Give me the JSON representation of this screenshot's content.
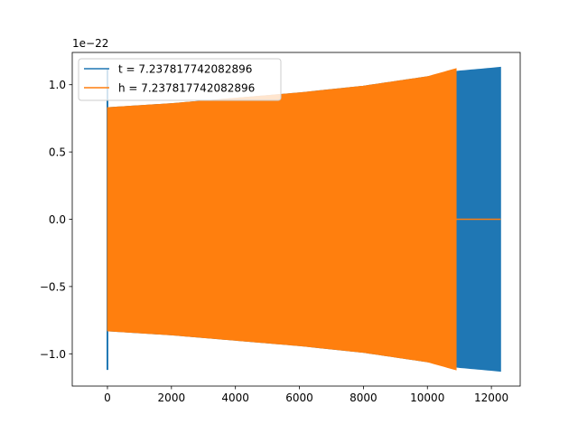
{
  "chart_data": {
    "type": "line",
    "title": "",
    "xlabel": "",
    "ylabel": "",
    "offset_label": "1e−22",
    "xlim": [
      -1100,
      12900
    ],
    "ylim": [
      -1.24,
      1.24
    ],
    "xticks": [
      0,
      2000,
      4000,
      6000,
      8000,
      10000,
      12000
    ],
    "xtick_labels": [
      "0",
      "2000",
      "4000",
      "6000",
      "8000",
      "10000",
      "12000"
    ],
    "yticks": [
      -1.0,
      -0.5,
      0.0,
      0.5,
      1.0
    ],
    "ytick_labels": [
      "−1.0",
      "−0.5",
      "0.0",
      "0.5",
      "1.0"
    ],
    "legend_position": "top-left",
    "grid": false,
    "series": [
      {
        "name": "t = 7.237817742082896",
        "color": "#1f77b4",
        "style": "oscillating envelope",
        "x_start": 0,
        "x_end": 12290,
        "envelope_x": [
          0,
          2000,
          4000,
          6000,
          8000,
          10000,
          10900,
          12290
        ],
        "envelope_amplitude": [
          0.83,
          0.86,
          0.9,
          0.94,
          0.99,
          1.06,
          1.1,
          1.13
        ],
        "initial_spike": 1.12
      },
      {
        "name": "h = 7.237817742082896",
        "color": "#ff7f0e",
        "style": "oscillating envelope",
        "x_start": 0,
        "x_end": 10900,
        "envelope_x": [
          0,
          2000,
          4000,
          6000,
          8000,
          10000,
          10900
        ],
        "envelope_amplitude": [
          0.83,
          0.86,
          0.9,
          0.94,
          0.99,
          1.06,
          1.12
        ],
        "zero_segment_x": [
          10900,
          12290
        ],
        "zero_segment_y": 0
      }
    ]
  }
}
